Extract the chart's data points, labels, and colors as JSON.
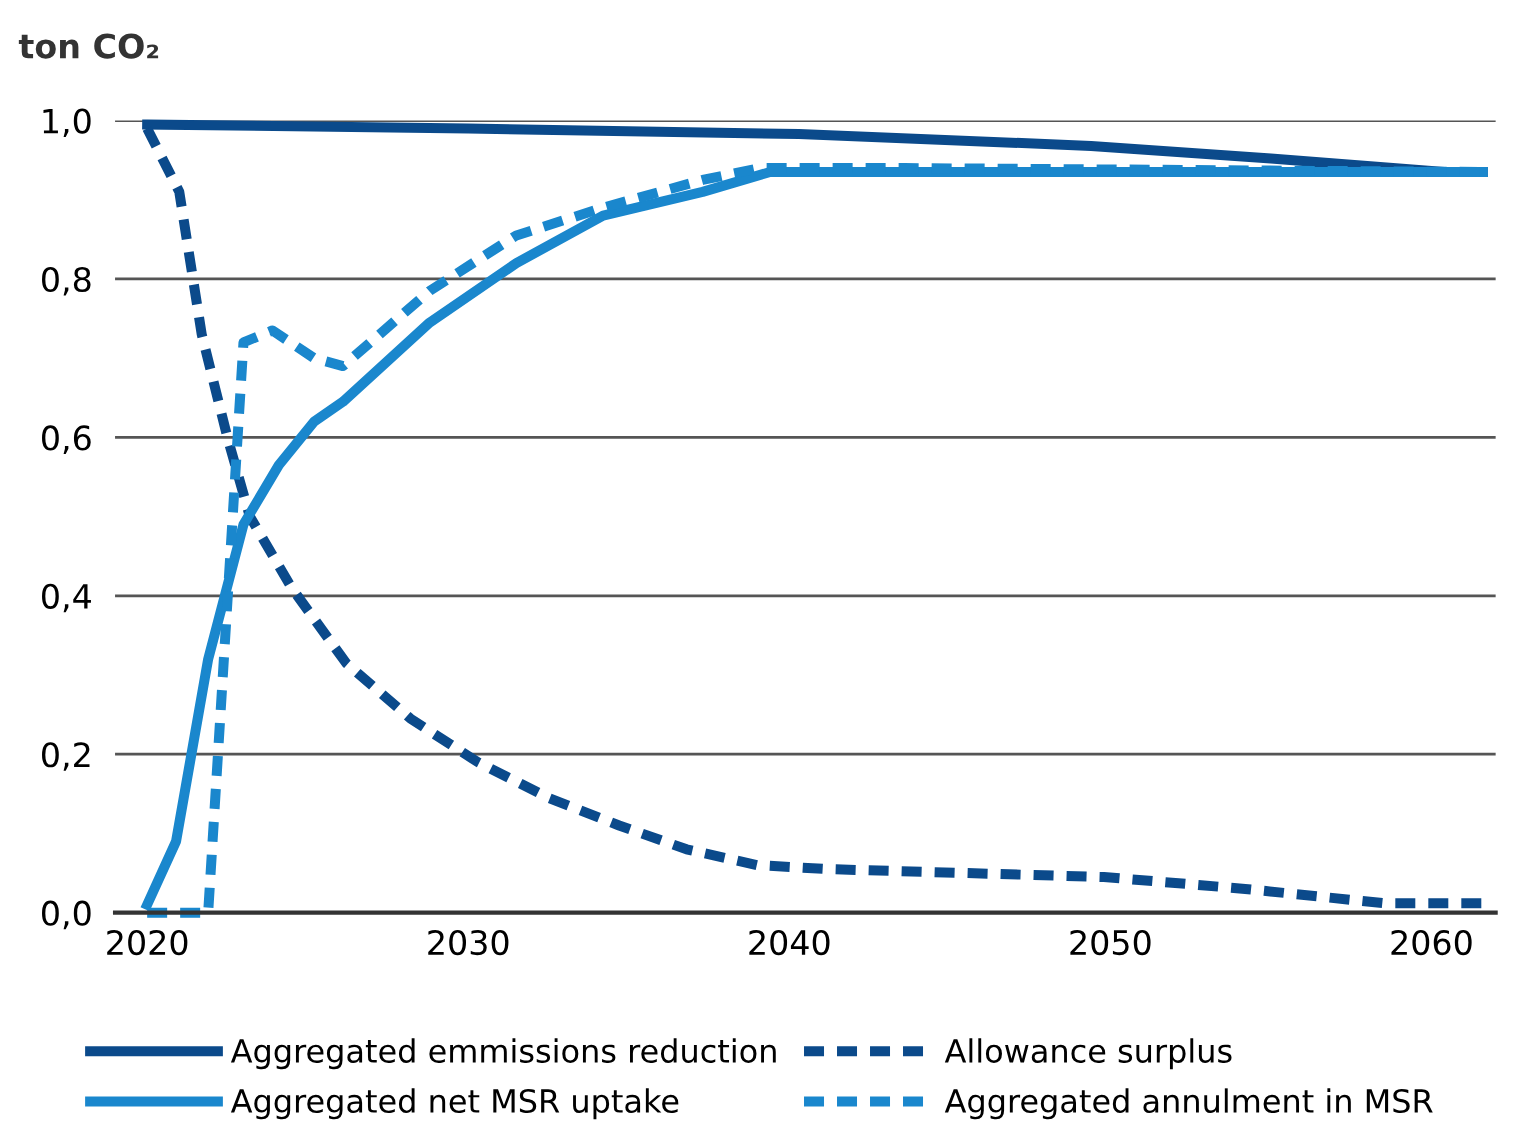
{
  "chart_data": {
    "type": "line",
    "ylabel": "ton CO₂",
    "xlim": [
      2019,
      2062
    ],
    "xticks": [
      2020,
      2030,
      2040,
      2050,
      2060
    ],
    "ylim": [
      0,
      1.0
    ],
    "yticks": [
      {
        "value": 0,
        "label": "0,0"
      },
      {
        "value": 0.2,
        "label": "0,2"
      },
      {
        "value": 0.4,
        "label": "0,4"
      },
      {
        "value": 0.6,
        "label": "0,6"
      },
      {
        "value": 0.8,
        "label": "0,8"
      },
      {
        "value": 1.0,
        "label": "1,0"
      }
    ],
    "grid": "y",
    "legend": "bottom",
    "marker": "none",
    "series": [
      {
        "name": "Aggregated emmissions reduction",
        "color": "#0b4a8b",
        "line_style": "solid",
        "x": [
          2020,
          2030,
          2040.3,
          2049.4,
          2055,
          2060.4,
          2061.6
        ],
        "values": [
          0.995,
          0.99,
          0.983,
          0.968,
          0.952,
          0.935,
          0.935
        ]
      },
      {
        "name": "Allowance surplus",
        "color": "#0b4a8b",
        "line_style": "dashed",
        "x": [
          2020,
          2021,
          2021.7,
          2022.5,
          2023.2,
          2024.5,
          2026.2,
          2028.2,
          2030.3,
          2032.5,
          2034.7,
          2036.8,
          2039,
          2041.2,
          2049.8,
          2054.2,
          2058.5,
          2061.6
        ],
        "values": [
          0.99,
          0.91,
          0.73,
          0.6,
          0.5,
          0.41,
          0.315,
          0.245,
          0.19,
          0.145,
          0.11,
          0.08,
          0.06,
          0.055,
          0.045,
          0.03,
          0.012,
          0.012
        ]
      },
      {
        "name": "Aggregated net MSR uptake",
        "color": "#1a87cd",
        "line_style": "solid",
        "x": [
          2020,
          2020.9,
          2021.9,
          2023,
          2024.1,
          2025.2,
          2026.1,
          2028.8,
          2031.5,
          2034.2,
          2037.3,
          2039.4,
          2061.6
        ],
        "values": [
          0.01,
          0.09,
          0.32,
          0.49,
          0.565,
          0.62,
          0.645,
          0.745,
          0.82,
          0.88,
          0.91,
          0.935,
          0.935
        ]
      },
      {
        "name": "Aggregated annulment in MSR",
        "color": "#1a87cd",
        "line_style": "dashed",
        "x": [
          2020,
          2021.9,
          2023,
          2023.9,
          2025.2,
          2026.1,
          2028.8,
          2031.5,
          2034.2,
          2037.3,
          2039.1,
          2043.6,
          2061.6
        ],
        "values": [
          0,
          0,
          0.72,
          0.735,
          0.7,
          0.69,
          0.785,
          0.855,
          0.89,
          0.925,
          0.94,
          0.94,
          0.935
        ]
      }
    ]
  }
}
